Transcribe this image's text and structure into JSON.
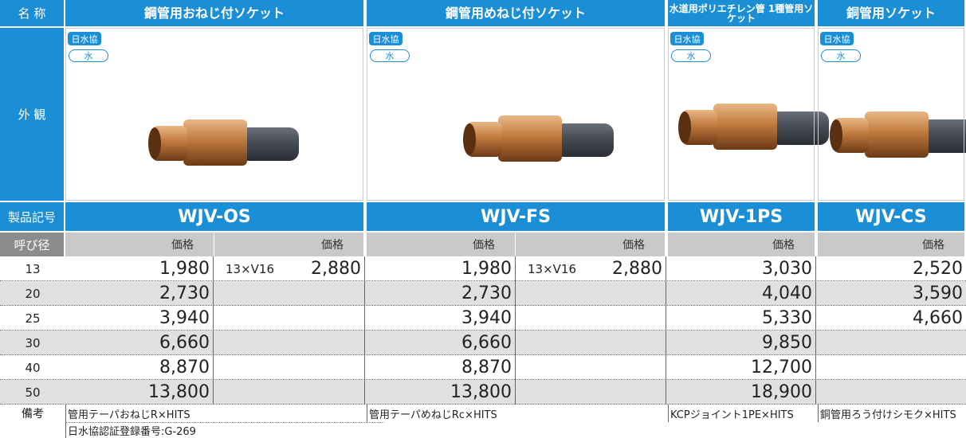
{
  "header": {
    "name_label": "名 称",
    "appearance_label": "外 観",
    "model_label": "製品記号",
    "size_label": "呼び径",
    "remarks_label": "備考"
  },
  "products": [
    {
      "name": "鋼管用おねじ付ソケット",
      "badge": "日水協",
      "badge_sub": "水",
      "model": "WJV-OS",
      "price_headers": [
        "価格",
        "価格"
      ],
      "note": "管用テーパおねじR×HITS"
    },
    {
      "name": "鋼管用めねじ付ソケット",
      "badge": "日水協",
      "badge_sub": "水",
      "model": "WJV-FS",
      "price_headers": [
        "価格",
        "価格"
      ],
      "note": "管用テーパめねじRc×HITS"
    },
    {
      "name": "水道用ポリエチレン管 1種管用ソケット",
      "badge": "日水協",
      "badge_sub": "水",
      "model": "WJV-1PS",
      "price_headers": [
        "価格"
      ],
      "note": "KCPジョイント1PE×HITS"
    },
    {
      "name": "銅管用ソケット",
      "badge": "日水協",
      "badge_sub": "水",
      "model": "WJV-CS",
      "price_headers": [
        "価格"
      ],
      "note": "銅管用ろう付けシモク×HITS"
    }
  ],
  "table": {
    "rows": [
      [
        "13",
        "1,980",
        "13×V16",
        "2,880",
        "1,980",
        "13×V16",
        "2,880",
        "3,030",
        "2,520"
      ],
      [
        "20",
        "2,730",
        null,
        null,
        "2,730",
        null,
        null,
        "4,040",
        "3,590"
      ],
      [
        "25",
        "3,940",
        null,
        null,
        "3,940",
        null,
        null,
        "5,330",
        "4,660"
      ],
      [
        "30",
        "6,660",
        null,
        null,
        "6,660",
        null,
        null,
        "9,850",
        null
      ],
      [
        "40",
        "8,870",
        null,
        null,
        "8,870",
        null,
        null,
        "12,700",
        null
      ],
      [
        "50",
        "13,800",
        null,
        null,
        "13,800",
        null,
        null,
        "18,900",
        null
      ]
    ]
  },
  "footer": {
    "registration": "日水協認証登録番号:G-269"
  }
}
